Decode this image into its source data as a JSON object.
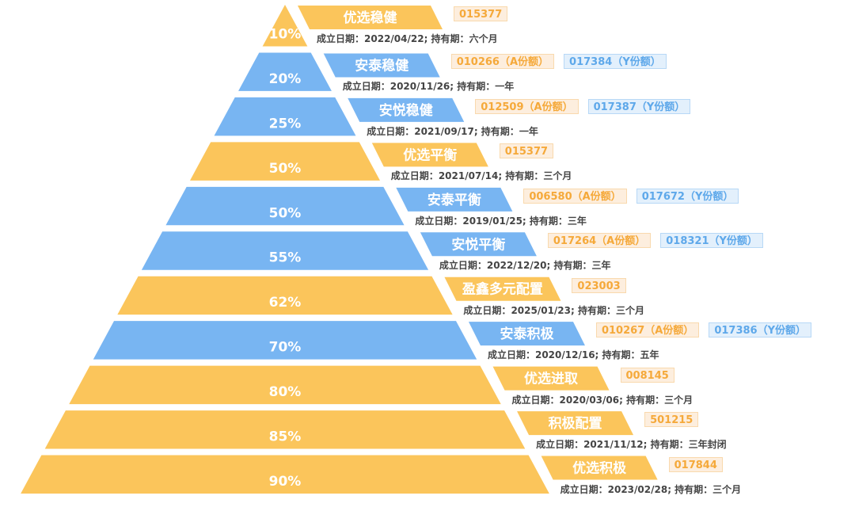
{
  "colors": {
    "orange": "#fbc55b",
    "blue": "#78b5f2",
    "code_orange": "#f5a93a",
    "code_blue": "#5ea8ea"
  },
  "info_template": {
    "prefix": "成立日期：",
    "sep": "; 持有期："
  },
  "tiers": [
    {
      "pct": "10%",
      "name": "优选稳健",
      "color": "orange",
      "codes": [
        {
          "text": "015377",
          "kind": "orange"
        }
      ],
      "date": "2022/04/22",
      "hold": "六个月"
    },
    {
      "pct": "20%",
      "name": "安泰稳健",
      "color": "blue",
      "codes": [
        {
          "text": "010266（A份额）",
          "kind": "orange"
        },
        {
          "text": "017384（Y份额）",
          "kind": "blue"
        }
      ],
      "date": "2020/11/26",
      "hold": "一年"
    },
    {
      "pct": "25%",
      "name": "安悦稳健",
      "color": "blue",
      "codes": [
        {
          "text": "012509（A份额）",
          "kind": "orange"
        },
        {
          "text": "017387（Y份额）",
          "kind": "blue"
        }
      ],
      "date": "2021/09/17",
      "hold": "一年"
    },
    {
      "pct": "50%",
      "name": "优选平衡",
      "color": "orange",
      "codes": [
        {
          "text": "015377",
          "kind": "orange"
        }
      ],
      "date": "2021/07/14",
      "hold": "三个月"
    },
    {
      "pct": "50%",
      "name": "安泰平衡",
      "color": "blue",
      "codes": [
        {
          "text": "006580（A份额）",
          "kind": "orange"
        },
        {
          "text": "017672（Y份额）",
          "kind": "blue"
        }
      ],
      "date": "2019/01/25",
      "hold": "三年"
    },
    {
      "pct": "55%",
      "name": "安悦平衡",
      "color": "blue",
      "codes": [
        {
          "text": "017264（A份额）",
          "kind": "orange"
        },
        {
          "text": "018321（Y份额）",
          "kind": "blue"
        }
      ],
      "date": "2022/12/20",
      "hold": "三年"
    },
    {
      "pct": "62%",
      "name": "盈鑫多元配置",
      "color": "orange",
      "codes": [
        {
          "text": "023003",
          "kind": "orange"
        }
      ],
      "date": "2025/01/23",
      "hold": "三个月"
    },
    {
      "pct": "70%",
      "name": "安泰积极",
      "color": "blue",
      "codes": [
        {
          "text": "010267（A份额）",
          "kind": "orange"
        },
        {
          "text": "017386（Y份额）",
          "kind": "blue"
        }
      ],
      "date": "2020/12/16",
      "hold": "五年"
    },
    {
      "pct": "80%",
      "name": "优选进取",
      "color": "orange",
      "codes": [
        {
          "text": "008145",
          "kind": "orange"
        }
      ],
      "date": "2020/03/06",
      "hold": "三个月"
    },
    {
      "pct": "85%",
      "name": "积极配置",
      "color": "orange",
      "codes": [
        {
          "text": "501215",
          "kind": "orange"
        }
      ],
      "date": "2021/11/12",
      "hold": "三年封闭"
    },
    {
      "pct": "90%",
      "name": "优选积极",
      "color": "orange",
      "codes": [
        {
          "text": "017844",
          "kind": "orange"
        }
      ],
      "date": "2023/02/28",
      "hold": "三个月"
    }
  ]
}
